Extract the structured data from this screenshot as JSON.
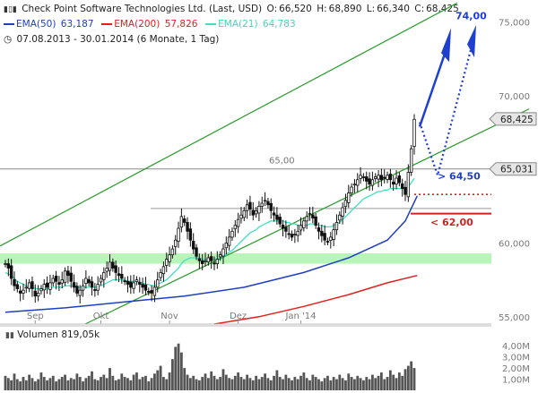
{
  "header": {
    "line1_icon": "candlestick-icon",
    "instrument": "Check Point Software Technologies Ltd. (Last, USD)",
    "open_label": "O:",
    "open": "66,520",
    "high_label": "H:",
    "high": "68,890",
    "low_label": "L:",
    "low": "66,340",
    "close_label": "C:",
    "close": "68,425",
    "ema50_label": "EMA(50)",
    "ema50_value": "63,187",
    "ema200_label": "EMA(200)",
    "ema200_value": "57,826",
    "ema21_label": "EMA(21)",
    "ema21_value": "64,783",
    "line3_icon": "clock-icon",
    "period": "07.08.2013 - 30.01.2014 (6 Monate, 1 Tag)"
  },
  "colors": {
    "ema50": "#1f3fbf",
    "ema200": "#e02020",
    "ema21": "#40e0c0",
    "channel": "#2a9a2a",
    "support_zone": "#b8f5b8",
    "arrow": "#1f3fcf",
    "target_low": "#d42020",
    "candle": "#111111"
  },
  "chart_data": {
    "type": "candlestick",
    "ylim": [
      54.5,
      76.5
    ],
    "y_ticks": [
      "55,000",
      "60,000",
      "65,000",
      "70,000",
      "75,000"
    ],
    "y_tick_values": [
      55,
      60,
      65,
      70,
      75
    ],
    "x_ticks": [
      "Sep",
      "Okt",
      "Nov",
      "Dez",
      "Jan '14"
    ],
    "price_tags": [
      "68,425",
      "65,031"
    ],
    "price_tag_values": [
      68.425,
      65.031
    ],
    "annotations": {
      "level_65": "65,00",
      "target_up": "74,00",
      "break_level": "> 64,50",
      "stop_level": "< 62,00"
    },
    "close_series": [
      58.6,
      58.3,
      57.6,
      57.1,
      56.9,
      56.6,
      56.8,
      57.0,
      57.3,
      56.9,
      56.4,
      56.6,
      56.9,
      57.2,
      57.0,
      57.3,
      57.6,
      57.4,
      57.2,
      57.5,
      58.1,
      57.8,
      57.4,
      57.0,
      56.6,
      56.8,
      57.1,
      57.6,
      57.3,
      57.0,
      56.8,
      57.2,
      57.6,
      58.0,
      58.3,
      58.7,
      58.3,
      58.0,
      57.8,
      57.6,
      57.4,
      57.2,
      57.0,
      57.3,
      57.5,
      57.2,
      57.0,
      56.8,
      56.7,
      56.6,
      57.0,
      57.5,
      58.0,
      58.4,
      58.9,
      59.2,
      59.6,
      60.2,
      61.0,
      61.8,
      61.4,
      60.8,
      60.2,
      59.6,
      59.1,
      58.8,
      58.6,
      58.8,
      59.0,
      58.8,
      58.6,
      58.9,
      59.2,
      59.6,
      60.0,
      60.4,
      60.8,
      61.2,
      61.6,
      61.9,
      62.2,
      62.6,
      62.3,
      61.9,
      62.2,
      62.5,
      62.7,
      62.9,
      62.6,
      62.2,
      61.9,
      61.6,
      61.3,
      61.0,
      60.8,
      60.6,
      60.4,
      60.6,
      60.8,
      61.2,
      61.5,
      61.8,
      62.0,
      61.7,
      61.2,
      60.8,
      60.5,
      60.2,
      60.1,
      60.4,
      60.9,
      61.4,
      61.9,
      62.4,
      62.9,
      63.4,
      63.8,
      64.0,
      64.3,
      64.6,
      64.5,
      64.2,
      64.0,
      64.3,
      64.5,
      64.6,
      64.3,
      64.4,
      64.6,
      64.3,
      64.0,
      64.4,
      64.1,
      63.7,
      63.3,
      64.8,
      66.4,
      68.4
    ],
    "ema21_series": [
      58.0,
      57.9,
      57.8,
      57.6,
      57.4,
      57.3,
      57.2,
      57.1,
      57.1,
      57.0,
      56.9,
      56.9,
      56.9,
      56.9,
      56.9,
      56.9,
      57.0,
      57.0,
      57.0,
      57.0,
      57.1,
      57.1,
      57.1,
      57.1,
      57.0,
      57.0,
      57.0,
      57.0,
      57.0,
      57.0,
      57.0,
      57.0,
      57.1,
      57.2,
      57.3,
      57.4,
      57.5,
      57.5,
      57.5,
      57.5,
      57.5,
      57.4,
      57.4,
      57.4,
      57.4,
      57.3,
      57.3,
      57.2,
      57.2,
      57.1,
      57.1,
      57.2,
      57.3,
      57.4,
      57.5,
      57.7,
      57.9,
      58.1,
      58.3,
      58.6,
      58.8,
      58.9,
      59.0,
      59.0,
      59.0,
      59.0,
      58.9,
      58.9,
      58.9,
      58.9,
      58.9,
      58.9,
      59.0,
      59.1,
      59.2,
      59.4,
      59.5,
      59.7,
      59.9,
      60.1,
      60.3,
      60.5,
      60.7,
      60.8,
      60.9,
      61.1,
      61.2,
      61.3,
      61.4,
      61.5,
      61.5,
      61.5,
      61.5,
      61.5,
      61.4,
      61.4,
      61.3,
      61.3,
      61.2,
      61.2,
      61.2,
      61.2,
      61.3,
      61.3,
      61.3,
      61.2,
      61.2,
      61.1,
      61.1,
      61.1,
      61.2,
      61.3,
      61.4,
      61.6,
      61.8,
      62.0,
      62.2,
      62.4,
      62.6,
      62.8,
      63.0,
      63.1,
      63.2,
      63.3,
      63.4,
      63.5,
      63.5,
      63.6,
      63.6,
      63.7,
      63.7,
      63.7,
      63.7,
      63.7,
      63.7,
      63.8,
      64.1,
      64.4
    ],
    "ema50_series_pts": [
      [
        0,
        55.3
      ],
      [
        20,
        55.6
      ],
      [
        40,
        56.0
      ],
      [
        60,
        56.4
      ],
      [
        80,
        57.0
      ],
      [
        100,
        58.0
      ],
      [
        115,
        59.0
      ],
      [
        128,
        60.2
      ],
      [
        134,
        61.5
      ],
      [
        138,
        63.2
      ]
    ],
    "ema200_series_pts": [
      [
        70,
        54.5
      ],
      [
        85,
        55.0
      ],
      [
        100,
        55.7
      ],
      [
        115,
        56.5
      ],
      [
        128,
        57.3
      ],
      [
        138,
        57.8
      ]
    ],
    "volume_ylim": [
      0,
      4.5
    ],
    "volume_ticks": [
      "1,00M",
      "2,00M",
      "3,00M",
      "4,00M"
    ],
    "volume_tick_values": [
      1,
      2,
      3,
      4
    ],
    "volume_label": "Volumen",
    "volume_value": "819,05k",
    "volume_series": [
      1.3,
      1.1,
      0.9,
      1.5,
      1.0,
      0.8,
      1.2,
      0.9,
      1.4,
      1.1,
      0.8,
      1.0,
      1.6,
      1.2,
      0.9,
      1.1,
      1.3,
      0.8,
      1.0,
      1.2,
      1.4,
      0.9,
      1.1,
      1.0,
      1.5,
      1.2,
      0.8,
      1.1,
      1.3,
      1.7,
      1.0,
      0.9,
      1.2,
      1.4,
      1.1,
      2.0,
      1.3,
      0.9,
      1.0,
      1.5,
      1.2,
      1.1,
      0.9,
      1.4,
      1.6,
      1.0,
      1.2,
      1.3,
      0.8,
      1.1,
      1.5,
      1.8,
      2.2,
      1.2,
      1.0,
      1.6,
      2.8,
      3.9,
      4.2,
      3.4,
      2.0,
      1.4,
      1.1,
      1.3,
      1.0,
      0.9,
      1.2,
      1.5,
      1.1,
      1.7,
      1.3,
      1.0,
      1.2,
      1.9,
      1.4,
      1.1,
      1.0,
      1.3,
      1.6,
      1.2,
      1.0,
      1.4,
      1.1,
      0.9,
      1.3,
      1.0,
      1.2,
      1.5,
      1.1,
      0.9,
      1.3,
      1.8,
      1.2,
      1.0,
      1.4,
      1.1,
      0.9,
      1.2,
      1.0,
      1.3,
      1.6,
      1.1,
      0.9,
      1.4,
      1.2,
      1.0,
      0.8,
      1.1,
      1.3,
      0.9,
      1.2,
      1.0,
      1.4,
      1.1,
      0.9,
      1.5,
      1.2,
      1.0,
      1.3,
      1.1,
      0.9,
      1.2,
      1.0,
      1.4,
      1.1,
      1.3,
      1.6,
      1.0,
      1.2,
      1.8,
      1.4,
      1.1,
      1.6,
      1.3,
      1.9,
      2.2,
      2.6,
      2.0
    ]
  }
}
